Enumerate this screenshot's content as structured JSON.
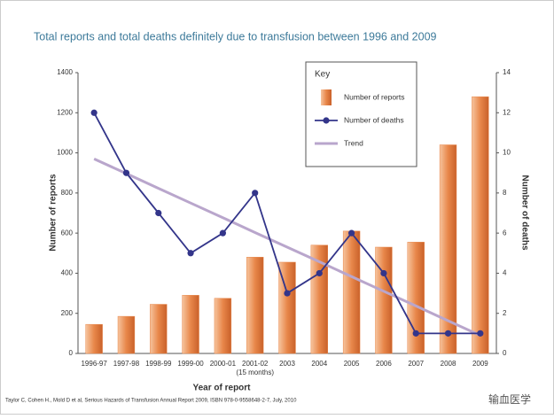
{
  "chart_data": {
    "type": "bar",
    "title": "Total reports and total deaths definitely due to transfusion between 1996 and 2009",
    "xlabel": "Year of report",
    "ylabel": "Number of reports",
    "y2label": "Number of deaths",
    "legend_title": "Key",
    "annotations": [
      "(15 months)"
    ],
    "footnote": "Taylor C, Cohen H., Mold D et al, Serious Hazards of Transfusion Annual Report 2009, ISBN 978-0-9558648-2-7, July, 2010",
    "watermark": "输血医学",
    "categories": [
      "1996-97",
      "1997-98",
      "1998-99",
      "1999-00",
      "2000-01",
      "2001-02",
      "2003",
      "2004",
      "2005",
      "2006",
      "2007",
      "2008",
      "2009"
    ],
    "series": [
      {
        "name": "Number of reports",
        "type": "bar",
        "color": "#e8874a",
        "values": [
          145,
          185,
          245,
          290,
          275,
          480,
          455,
          540,
          610,
          530,
          555,
          1040,
          1280
        ]
      },
      {
        "name": "Number of deaths",
        "type": "line",
        "axis": "y2",
        "color": "#33358a",
        "values": [
          12,
          9,
          7,
          5,
          6,
          8,
          3,
          4,
          6,
          4,
          1,
          1,
          1
        ]
      },
      {
        "name": "Trend",
        "type": "trend",
        "axis": "y2",
        "color": "#b9a6cc",
        "values": [
          9.7,
          8.97,
          8.23,
          7.5,
          6.77,
          6.03,
          5.3,
          4.57,
          3.83,
          3.1,
          2.37,
          1.63,
          0.9
        ]
      }
    ],
    "ylim": [
      0,
      1400
    ],
    "yticks": [
      0,
      200,
      400,
      600,
      800,
      1000,
      1200,
      1400
    ],
    "y2lim": [
      0,
      14
    ],
    "y2ticks": [
      0,
      2,
      4,
      6,
      8,
      10,
      12,
      14
    ]
  }
}
